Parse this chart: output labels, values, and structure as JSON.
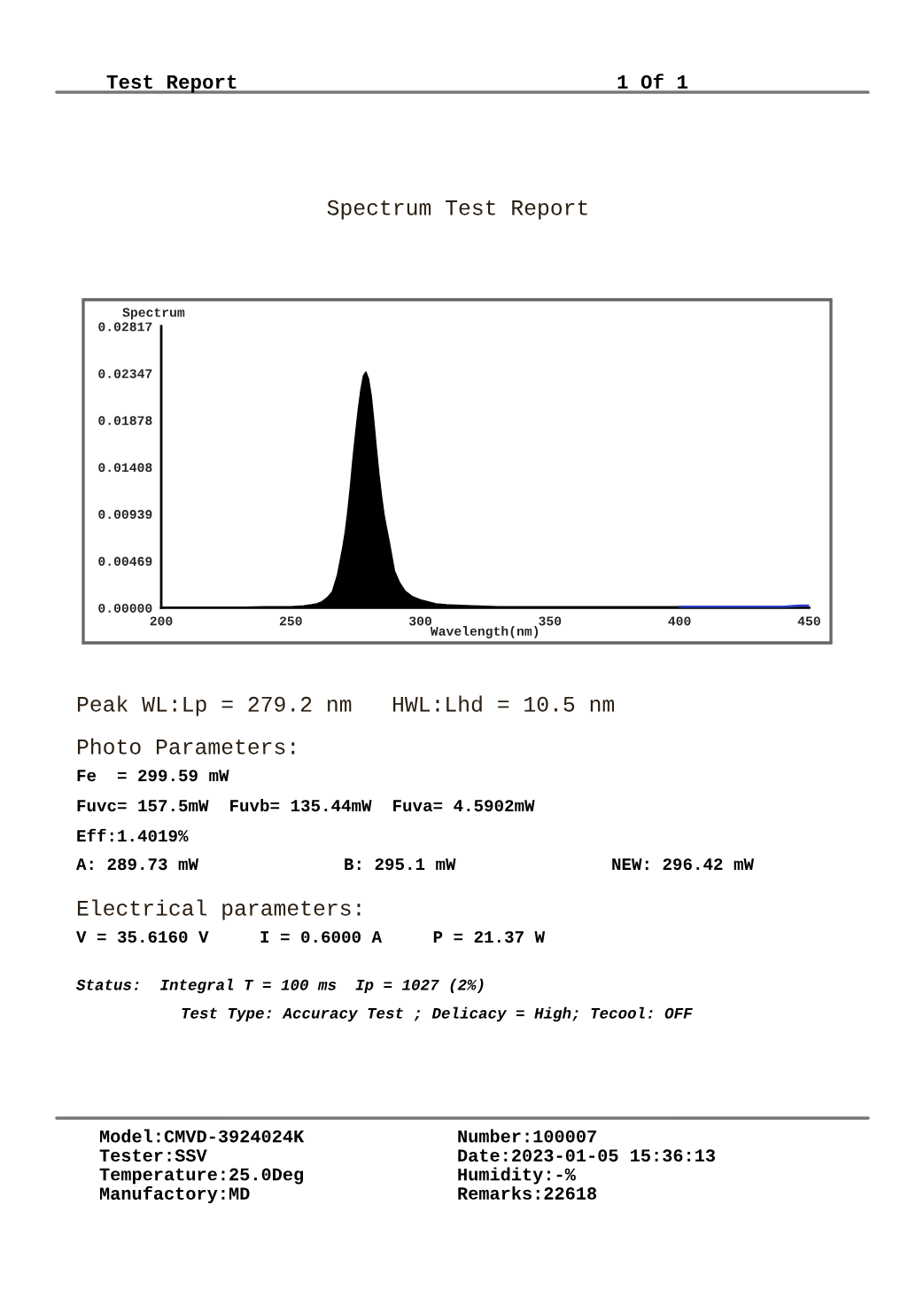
{
  "chart_data": {
    "type": "area",
    "title": "Spectrum Test Report",
    "xlabel": "Wavelength(nm)",
    "ylabel": "Spectrum",
    "xlim": [
      200,
      450
    ],
    "xticks": [
      200,
      250,
      300,
      350,
      400,
      450
    ],
    "ylim": [
      0,
      0.02817
    ],
    "yticks": [
      {
        "value": 0,
        "label": "0.00000"
      },
      0.00469,
      0.00939,
      0.01408,
      0.01878,
      0.02347,
      0.02817
    ],
    "series": [
      {
        "color": "#000000",
        "x": [
          200,
          220,
          240,
          250,
          255,
          258,
          260,
          262,
          264,
          266,
          268,
          270,
          271,
          272,
          273,
          274,
          275,
          276,
          277,
          278,
          279,
          280,
          281,
          282,
          283,
          284,
          285,
          286,
          287,
          288,
          290,
          292,
          294,
          296,
          297,
          300,
          303,
          306,
          310,
          320,
          330,
          350,
          370,
          400
        ],
        "values": [
          0,
          0,
          0.0001,
          0.0001,
          0.0002,
          0.0003,
          0.0004,
          0.0006,
          0.001,
          0.0016,
          0.0033,
          0.006,
          0.0076,
          0.0097,
          0.0122,
          0.015,
          0.0175,
          0.0198,
          0.0218,
          0.0232,
          0.0236,
          0.0229,
          0.0213,
          0.0188,
          0.016,
          0.0134,
          0.0112,
          0.0093,
          0.0079,
          0.0066,
          0.0037,
          0.0025,
          0.0017,
          0.0013,
          0.0011,
          0.0008,
          0.0006,
          0.0004,
          0.0003,
          0.0002,
          0.0001,
          0.0001,
          0.0001,
          0.0001
        ]
      },
      {
        "type": "line",
        "color": "#2a3cc0",
        "x": [
          400,
          420,
          440,
          446,
          450
        ],
        "values": [
          0.0001,
          0.0001,
          0.0001,
          0.0002,
          0.0002
        ]
      }
    ],
    "annotations": [
      "Test Report",
      "1 Of 1",
      "Peak WL:Lp = 279.2 nm   HWL:Lhd = 10.5 nm",
      "Photo Parameters:",
      "Fe  = 299.59 mW",
      "Fuvc= 157.5mW  Fuvb= 135.44mW  Fuva= 4.5902mW",
      "Eff:1.4019%",
      "A: 289.73 mW",
      "B: 295.1 mW",
      "NEW: 296.42 mW",
      "Electrical parameters:",
      "V = 35.6160 V     I = 0.6000 A     P = 21.37 W",
      "Status:  Integral T = 100 ms  Ip = 1027 (2%)",
      "Test Type: Accuracy Test ; Delicacy = High; Tecool: OFF",
      "Model:CMVD-3924024K",
      "Tester:SSV",
      "Temperature:25.0Deg",
      "Manufactory:MD",
      "Number:100007",
      "Date:2023-01-05 15:36:13",
      "Humidity:-%",
      "Remarks:22618"
    ]
  }
}
